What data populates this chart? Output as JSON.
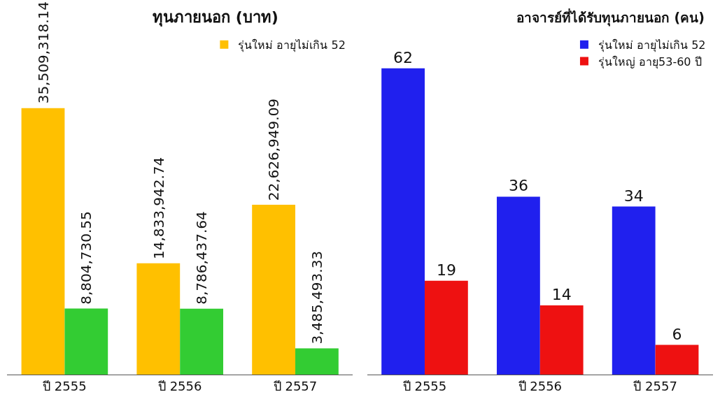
{
  "chart_data": [
    {
      "type": "bar",
      "title": "ทุนภายนอก (บาท)",
      "categories": [
        "ปี 2555",
        "ปี 2556",
        "ปี 2557"
      ],
      "series": [
        {
          "name": "รุ่นใหม่ อายุไม่เกิน 52",
          "color": "#ffc000",
          "values": [
            35509318.14,
            14833942.74,
            22626949.09
          ],
          "value_labels": [
            "35,509,318.14",
            "14,833,942.74",
            "22,626,949.09"
          ]
        },
        {
          "color": "#33cc33",
          "values": [
            8804730.55,
            8786437.64,
            3485493.33
          ],
          "value_labels": [
            "8,804,730.55",
            "8,786,437.64",
            "3,485,493.33"
          ]
        }
      ],
      "legend": "top right",
      "tick_labels": "x"
    },
    {
      "type": "bar",
      "title": "อาจารย์ที่ได้รับทุนภายนอก (คน)",
      "categories": [
        "ปี 2555",
        "ปี 2556",
        "ปี 2557"
      ],
      "series": [
        {
          "name": "รุ่นใหม่ อายุไม่เกิน 52",
          "color": "#2020ee",
          "values": [
            62,
            36,
            34
          ]
        },
        {
          "name": "รุ่นใหญ่ อายุ53-60 ปี",
          "color": "#ee1111",
          "values": [
            19,
            14,
            6
          ]
        }
      ],
      "data_labels": true,
      "legend": "top right",
      "tick_labels": "x"
    }
  ]
}
